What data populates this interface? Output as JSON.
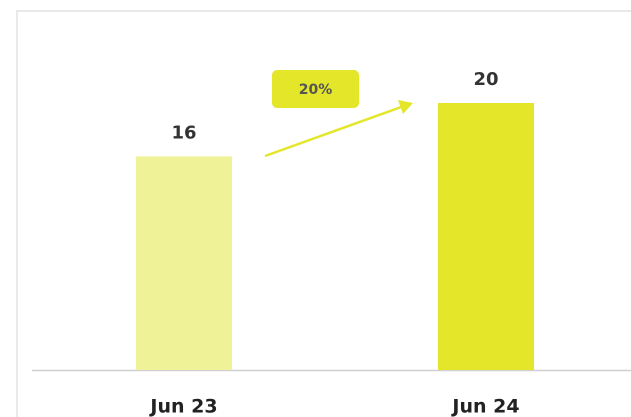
{
  "chart_data": {
    "type": "bar",
    "categories": [
      "Jun 23",
      "Jun 24"
    ],
    "values": [
      16,
      20
    ],
    "colors": [
      "#f0f297",
      "#e3e629"
    ],
    "annotation": "20%"
  }
}
